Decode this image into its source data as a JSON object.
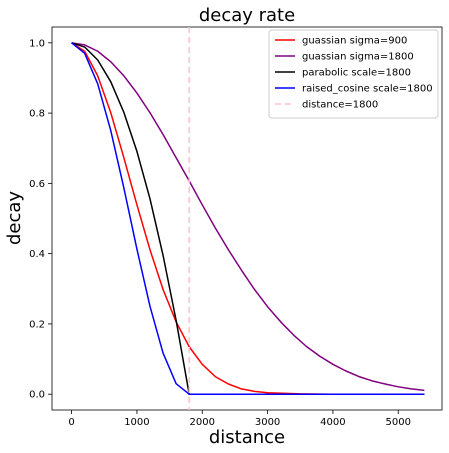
{
  "chart_data": {
    "type": "line",
    "title": "decay rate",
    "xlabel": "distance",
    "ylabel": "decay",
    "xlim": [
      -300,
      5670
    ],
    "ylim": [
      -0.045,
      1.045
    ],
    "xticks": [
      0,
      1000,
      2000,
      3000,
      4000,
      5000
    ],
    "yticks": [
      0.0,
      0.2,
      0.4,
      0.6,
      0.8,
      1.0
    ],
    "xtick_labels": [
      "0",
      "1000",
      "2000",
      "3000",
      "4000",
      "5000"
    ],
    "ytick_labels": [
      "0.0",
      "0.2",
      "0.4",
      "0.6",
      "0.8",
      "1.0"
    ],
    "grid": false,
    "legend_position": "top-right",
    "series": [
      {
        "name": "guassian sigma=900",
        "color": "#ff0000",
        "x": [
          0,
          200,
          400,
          600,
          800,
          1000,
          1200,
          1400,
          1600,
          1800,
          2000,
          2200,
          2400,
          2600,
          2800,
          3000,
          3500,
          4000,
          4500,
          5000,
          5400
        ],
        "y": [
          1.0,
          0.976,
          0.906,
          0.801,
          0.673,
          0.539,
          0.411,
          0.298,
          0.206,
          0.135,
          0.085,
          0.05,
          0.029,
          0.015,
          0.008,
          0.004,
          0.001,
          0.0,
          0.0,
          0.0,
          0.0
        ]
      },
      {
        "name": "guassian sigma=1800",
        "color": "#800080",
        "x": [
          0,
          200,
          400,
          600,
          800,
          1000,
          1200,
          1400,
          1600,
          1800,
          2000,
          2200,
          2400,
          2600,
          2800,
          3000,
          3200,
          3400,
          3600,
          3800,
          4000,
          4200,
          4400,
          4600,
          4800,
          5000,
          5200,
          5400
        ],
        "y": [
          1.0,
          0.994,
          0.976,
          0.946,
          0.906,
          0.857,
          0.801,
          0.739,
          0.673,
          0.607,
          0.539,
          0.473,
          0.411,
          0.353,
          0.298,
          0.249,
          0.206,
          0.168,
          0.135,
          0.108,
          0.085,
          0.066,
          0.05,
          0.038,
          0.029,
          0.021,
          0.015,
          0.011
        ]
      },
      {
        "name": "parabolic scale=1800",
        "color": "#000000",
        "x": [
          0,
          200,
          400,
          600,
          800,
          1000,
          1200,
          1400,
          1600,
          1800,
          2000,
          2500,
          3000,
          4000,
          5000,
          5400
        ],
        "y": [
          1.0,
          0.988,
          0.951,
          0.889,
          0.802,
          0.691,
          0.556,
          0.395,
          0.21,
          0.0,
          0.0,
          0.0,
          0.0,
          0.0,
          0.0,
          0.0
        ]
      },
      {
        "name": "raised_cosine scale=1800",
        "color": "#0000ff",
        "x": [
          0,
          200,
          400,
          600,
          800,
          1000,
          1200,
          1400,
          1600,
          1800,
          2000,
          2500,
          3000,
          4000,
          5000,
          5400
        ],
        "y": [
          1.0,
          0.97,
          0.883,
          0.75,
          0.587,
          0.413,
          0.25,
          0.117,
          0.03,
          0.0,
          0.0,
          0.0,
          0.0,
          0.0,
          0.0,
          0.0
        ]
      }
    ],
    "reference_lines": [
      {
        "name": "distance=1800",
        "orientation": "vertical",
        "x": 1800,
        "color": "#ffc0cb",
        "style": "dashed"
      }
    ]
  }
}
